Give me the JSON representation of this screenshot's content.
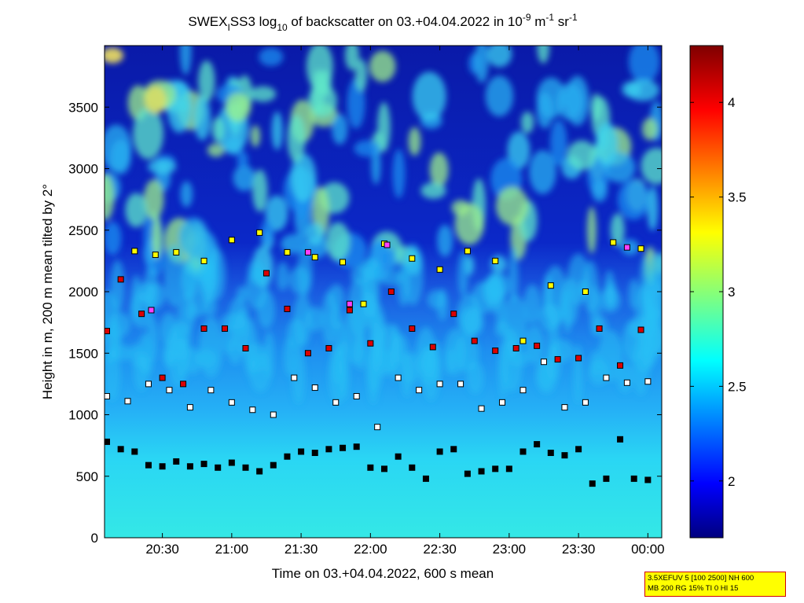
{
  "chart_data": {
    "type": "heatmap",
    "title_parts": {
      "t1": "SWEX",
      "t2": "I",
      "t3": "SS3 log",
      "t4": "10",
      "t5": " of backscatter on 03.+04.04.2022 in 10",
      "t6": "-9",
      "t7": " m",
      "t8": "-1",
      "t9": " sr",
      "t10": "-1"
    },
    "xlabel": "Time on 03.+04.04.2022, 600 s mean",
    "ylabel": "Height in m, 200 m mean tilted by 2°",
    "x_range_min": [
      20.083,
      24.1
    ],
    "x_ticks_min": [
      20.5,
      21.0,
      21.5,
      22.0,
      22.5,
      23.0,
      23.5,
      24.0
    ],
    "x_tick_labels": [
      "20:30",
      "21:00",
      "21:30",
      "22:00",
      "22:30",
      "23:00",
      "23:30",
      "00:00"
    ],
    "ylim": [
      0,
      4000
    ],
    "y_ticks": [
      0,
      500,
      1000,
      1500,
      2000,
      2500,
      3000,
      3500
    ],
    "y_tick_labels": [
      "0",
      "500",
      "1000",
      "1500",
      "2000",
      "2500",
      "3000",
      "3500"
    ],
    "colorbar": {
      "range": [
        1.7,
        4.3
      ],
      "ticks": [
        2,
        2.5,
        3,
        3.5,
        4
      ],
      "tick_labels": [
        "2",
        "2.5",
        "3",
        "3.5",
        "4"
      ],
      "colormap": "jet"
    },
    "field_description": {
      "surface_layer": [
        0,
        700,
        2.65
      ],
      "mid_layer": [
        700,
        1500,
        2.5
      ],
      "upper_aerosol": [
        1500,
        2100,
        2.4
      ],
      "free_troposphere": [
        2100,
        4000,
        1.8
      ]
    },
    "markers": {
      "legend_colors": {
        "black": "#000000",
        "white": "#ffffff",
        "red": "#dd0000",
        "yellow": "#ffff00",
        "magenta": "#ff40ff"
      },
      "layers": [
        {
          "name": "lowest",
          "color": "black",
          "points": [
            [
              20.1,
              780
            ],
            [
              20.2,
              720
            ],
            [
              20.3,
              700
            ],
            [
              20.4,
              590
            ],
            [
              20.5,
              580
            ],
            [
              20.6,
              620
            ],
            [
              20.7,
              580
            ],
            [
              20.8,
              600
            ],
            [
              20.9,
              570
            ],
            [
              21.0,
              610
            ],
            [
              21.1,
              570
            ],
            [
              21.2,
              540
            ],
            [
              21.3,
              590
            ],
            [
              21.4,
              660
            ],
            [
              21.5,
              700
            ],
            [
              21.6,
              690
            ],
            [
              21.7,
              720
            ],
            [
              21.8,
              730
            ],
            [
              21.9,
              740
            ],
            [
              22.0,
              570
            ],
            [
              22.1,
              560
            ],
            [
              22.2,
              660
            ],
            [
              22.3,
              570
            ],
            [
              22.4,
              480
            ],
            [
              22.5,
              700
            ],
            [
              22.6,
              720
            ],
            [
              22.7,
              520
            ],
            [
              22.8,
              540
            ],
            [
              22.9,
              560
            ],
            [
              23.0,
              560
            ],
            [
              23.1,
              700
            ],
            [
              23.2,
              760
            ],
            [
              23.3,
              690
            ],
            [
              23.4,
              670
            ],
            [
              23.5,
              720
            ],
            [
              23.6,
              440
            ],
            [
              23.7,
              480
            ],
            [
              23.8,
              800
            ],
            [
              23.9,
              480
            ],
            [
              24.0,
              470
            ]
          ]
        },
        {
          "name": "second",
          "color": "white",
          "points": [
            [
              20.1,
              1150
            ],
            [
              20.25,
              1110
            ],
            [
              20.4,
              1250
            ],
            [
              20.55,
              1200
            ],
            [
              20.7,
              1060
            ],
            [
              20.85,
              1200
            ],
            [
              21.0,
              1100
            ],
            [
              21.15,
              1040
            ],
            [
              21.3,
              1000
            ],
            [
              21.45,
              1300
            ],
            [
              21.6,
              1220
            ],
            [
              21.75,
              1100
            ],
            [
              21.9,
              1150
            ],
            [
              22.05,
              900
            ],
            [
              22.2,
              1300
            ],
            [
              22.35,
              1200
            ],
            [
              22.5,
              1250
            ],
            [
              22.65,
              1250
            ],
            [
              22.8,
              1050
            ],
            [
              22.95,
              1100
            ],
            [
              23.1,
              1200
            ],
            [
              23.25,
              1430
            ],
            [
              23.4,
              1060
            ],
            [
              23.55,
              1100
            ],
            [
              23.7,
              1300
            ],
            [
              23.85,
              1260
            ],
            [
              24.0,
              1270
            ]
          ]
        },
        {
          "name": "third",
          "color": "red",
          "points": [
            [
              20.1,
              1680
            ],
            [
              20.2,
              2100
            ],
            [
              20.35,
              1820
            ],
            [
              20.5,
              1300
            ],
            [
              20.65,
              1250
            ],
            [
              20.8,
              1700
            ],
            [
              20.95,
              1700
            ],
            [
              21.1,
              1540
            ],
            [
              21.25,
              2150
            ],
            [
              21.4,
              1860
            ],
            [
              21.55,
              1500
            ],
            [
              21.7,
              1540
            ],
            [
              21.85,
              1850
            ],
            [
              22.0,
              1580
            ],
            [
              22.15,
              2000
            ],
            [
              22.3,
              1700
            ],
            [
              22.45,
              1550
            ],
            [
              22.6,
              1820
            ],
            [
              22.75,
              1600
            ],
            [
              22.9,
              1520
            ],
            [
              23.05,
              1540
            ],
            [
              23.2,
              1560
            ],
            [
              23.35,
              1450
            ],
            [
              23.5,
              1460
            ],
            [
              23.65,
              1700
            ],
            [
              23.8,
              1400
            ],
            [
              23.95,
              1690
            ]
          ]
        },
        {
          "name": "top",
          "color": "yellow",
          "points": [
            [
              20.3,
              2330
            ],
            [
              20.45,
              2300
            ],
            [
              20.6,
              2320
            ],
            [
              20.8,
              2250
            ],
            [
              21.0,
              2420
            ],
            [
              21.2,
              2480
            ],
            [
              21.4,
              2320
            ],
            [
              21.6,
              2280
            ],
            [
              21.8,
              2240
            ],
            [
              21.95,
              1900
            ],
            [
              22.1,
              2390
            ],
            [
              22.3,
              2270
            ],
            [
              22.5,
              2180
            ],
            [
              22.7,
              2330
            ],
            [
              22.9,
              2250
            ],
            [
              23.1,
              1600
            ],
            [
              23.3,
              2050
            ],
            [
              23.55,
              2000
            ],
            [
              23.75,
              2400
            ],
            [
              23.95,
              2350
            ]
          ]
        },
        {
          "name": "extra",
          "color": "magenta",
          "points": [
            [
              20.42,
              1850
            ],
            [
              21.55,
              2320
            ],
            [
              21.85,
              1900
            ],
            [
              22.12,
              2380
            ],
            [
              23.85,
              2360
            ]
          ]
        }
      ]
    }
  },
  "info_box": {
    "line1": "3.5XEFUV 5 [100 2500] NH 600",
    "line2": "MB 200 RG 15% TI 0 HI 15"
  }
}
